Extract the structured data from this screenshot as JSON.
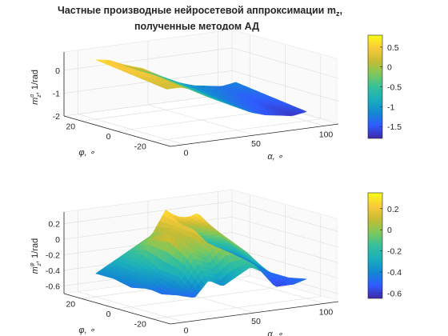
{
  "figure": {
    "title_line1": "Частные производные нейросетевой аппроксимации m",
    "title_sub": "z",
    "title_comma": ",",
    "title_line2": "полученные методом АД"
  },
  "colormap": [
    "#3e26a8",
    "#2f5bff",
    "#1389d2",
    "#19aebd",
    "#35c09b",
    "#7fc85b",
    "#c7bc34",
    "#faca3a",
    "#f9fb15"
  ],
  "chart_data": [
    {
      "type": "surface",
      "xlabel": "α, ∘",
      "ylabel": "φ, ∘",
      "zlabel_main": "m",
      "zlabel_sup": "α",
      "zlabel_sub": "z",
      "zlabel_unit": ", 1/rad",
      "x_ticks": [
        "0",
        "50",
        "100"
      ],
      "y_ticks": [
        "20",
        "0",
        "-20"
      ],
      "z_ticks": [
        "-2",
        "-1",
        "0"
      ],
      "xlim": [
        -10,
        110
      ],
      "ylim": [
        -30,
        30
      ],
      "zlim": [
        -2,
        0.8
      ],
      "colorbar": {
        "ticks": [
          "0.5",
          "0",
          "-0.5",
          "-1",
          "-1.5"
        ],
        "range": [
          -1.8,
          0.8
        ]
      },
      "z_grid_phi": [
        20,
        10,
        0,
        -10,
        -20
      ],
      "z_grid_alpha": [
        0,
        10,
        20,
        30,
        40,
        50,
        60,
        70,
        80,
        90,
        100
      ],
      "z_values": [
        [
          0.6,
          0.5,
          0.2,
          -0.1,
          -0.3,
          -0.6,
          -0.9,
          -1.1,
          -1.2,
          -1.3,
          -1.2
        ],
        [
          0.5,
          0.4,
          0.3,
          -0.1,
          -0.4,
          -0.7,
          -1.0,
          -1.2,
          -1.3,
          -1.4,
          -1.3
        ],
        [
          0.4,
          0.5,
          0.2,
          -0.2,
          -0.5,
          -0.8,
          -1.1,
          -1.3,
          -1.4,
          -1.5,
          -1.4
        ],
        [
          0.3,
          0.3,
          0.1,
          -0.3,
          -0.6,
          -0.9,
          -1.2,
          -1.4,
          -1.5,
          -1.6,
          -1.5
        ],
        [
          0.2,
          0.2,
          0.0,
          -0.4,
          -0.7,
          -1.0,
          -1.3,
          -1.5,
          -1.6,
          -1.7,
          -1.6
        ]
      ]
    },
    {
      "type": "surface",
      "xlabel": "α, ∘",
      "ylabel": "φ, ∘",
      "zlabel_main": "m",
      "zlabel_sup": "φ",
      "zlabel_sub": "z",
      "zlabel_unit": ", 1/rad",
      "x_ticks": [
        "0",
        "50",
        "100"
      ],
      "y_ticks": [
        "20",
        "0",
        "-20"
      ],
      "z_ticks": [
        "-0.6",
        "-0.4",
        "-0.2",
        "0",
        "0.2"
      ],
      "xlim": [
        -10,
        110
      ],
      "ylim": [
        -30,
        30
      ],
      "zlim": [
        -0.7,
        0.35
      ],
      "colorbar": {
        "ticks": [
          "0.2",
          "0",
          "-0.2",
          "-0.4",
          "-0.6"
        ],
        "range": [
          -0.65,
          0.35
        ]
      },
      "z_grid_phi": [
        20,
        10,
        0,
        -10,
        -20
      ],
      "z_grid_alpha": [
        0,
        10,
        20,
        30,
        40,
        50,
        60,
        70,
        80,
        90,
        100
      ],
      "z_values": [
        [
          -0.4,
          -0.3,
          -0.2,
          -0.1,
          0.0,
          0.3,
          0.1,
          0.0,
          -0.2,
          -0.3,
          -0.4
        ],
        [
          -0.4,
          -0.35,
          -0.15,
          0.1,
          0.1,
          0.2,
          0.3,
          0.1,
          -0.1,
          -0.3,
          -0.45
        ],
        [
          -0.45,
          -0.35,
          -0.3,
          0.2,
          0.0,
          0.25,
          0.1,
          0.0,
          -0.2,
          -0.4,
          -0.5
        ],
        [
          -0.4,
          -0.5,
          -0.3,
          0.0,
          -0.1,
          0.1,
          0.0,
          -0.1,
          -0.3,
          -0.6,
          -0.5
        ],
        [
          -0.35,
          -0.45,
          -0.5,
          -0.3,
          -0.4,
          -0.3,
          -0.2,
          -0.3,
          -0.4,
          -0.5,
          -0.45
        ]
      ]
    }
  ]
}
